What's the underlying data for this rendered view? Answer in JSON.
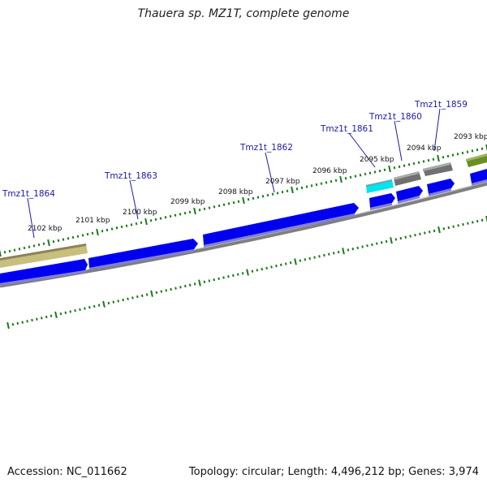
{
  "title": "Thauera sp. MZ1T, complete genome",
  "footer": {
    "accession": "Accession: NC_011662",
    "summary": "Topology: circular; Length: 4,496,212 bp; Genes: 3,974"
  },
  "colors": {
    "cds": "#0000ee",
    "cds_shadow": "#7f7fd6",
    "backbone": "#808080",
    "tick": "#1a7a1a",
    "label_line": "#1a1aaa",
    "cyan_feature": "#00e5ee",
    "gray_feature": "#707070",
    "olive_feature": "#c8bf7c",
    "green_feature": "#6b8e23"
  },
  "kbp_labels": [
    "2102 kbp",
    "2101 kbp",
    "2100 kbp",
    "2099 kbp",
    "2098 kbp",
    "2097 kbp",
    "2096 kbp",
    "2095 kbp",
    "2094 kbp",
    "2093 kbp"
  ],
  "gene_labels": [
    "Tmz1t_1864",
    "Tmz1t_1863",
    "Tmz1t_1862",
    "Tmz1t_1861",
    "Tmz1t_1860",
    "Tmz1t_1859"
  ]
}
